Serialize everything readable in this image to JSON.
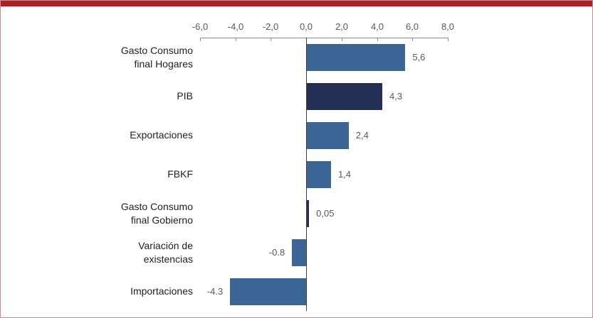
{
  "chart_data": {
    "type": "bar",
    "orientation": "horizontal",
    "title": "",
    "categories": [
      "Gasto Consumo final Hogares",
      "PIB",
      "Exportaciones",
      "FBKF",
      "Gasto Consumo final Gobierno",
      "Variación de existencias",
      "Importaciones"
    ],
    "category_display": [
      "Gasto Consumo\nfinal Hogares",
      "PIB",
      "Exportaciones",
      "FBKF",
      "Gasto Consumo\nfinal Gobierno",
      "Variación de\nexistencias",
      "Importaciones"
    ],
    "values": [
      5.6,
      4.3,
      2.4,
      1.4,
      0.05,
      -0.8,
      -4.3
    ],
    "value_labels": [
      "5,6",
      "4,3",
      "2,4",
      "1,4",
      "0,05",
      "-0.8",
      "-4.3"
    ],
    "bar_color_keys": [
      "steel",
      "navy",
      "steel",
      "steel",
      "navy",
      "steel",
      "steel"
    ],
    "xlim": [
      -6,
      8
    ],
    "x_ticks": [
      -6,
      -4,
      -2,
      0,
      2,
      4,
      6,
      8
    ],
    "x_tick_labels": [
      "-6,0",
      "-4,0",
      "-2,0",
      "0,0",
      "2,0",
      "4,0",
      "6,0",
      "8,0"
    ],
    "axis_position": "top",
    "grid": false,
    "legend": false
  },
  "colors": {
    "steel": "#3A6595",
    "navy": "#242F56",
    "accent_bar": "#A82127",
    "frame_border": "#D08A8E",
    "axis_line": "#8C8C8C",
    "zero_line": "#3F3F3F",
    "tick_label": "#595959",
    "value_label": "#595959",
    "category_label": "#1F1F1F"
  }
}
